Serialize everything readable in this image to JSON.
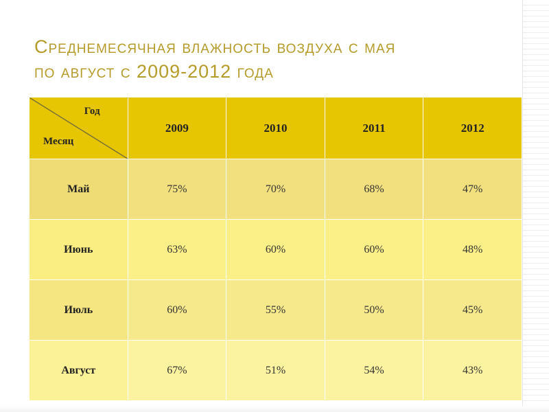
{
  "title": {
    "line1": "Среднемесячная влажность воздуха с мая",
    "line2": "по август с 2009-2012 года"
  },
  "table": {
    "corner_year_label": "Год",
    "corner_month_label": "Месяц",
    "years": [
      "2009",
      "2010",
      "2011",
      "2012"
    ],
    "rows": [
      {
        "month": "Май",
        "values": [
          "75%",
          "70%",
          "68%",
          "47%"
        ]
      },
      {
        "month": "Июнь",
        "values": [
          "63%",
          "60%",
          "60%",
          "48%"
        ]
      },
      {
        "month": "Июль",
        "values": [
          "60%",
          "55%",
          "50%",
          "45%"
        ]
      },
      {
        "month": "Август",
        "values": [
          "67%",
          "51%",
          "54%",
          "43%"
        ]
      }
    ]
  },
  "colors": {
    "title": "#b59b2a",
    "header_bg": "#e5c600",
    "row_bg": [
      "#f2e07f",
      "#fbf088",
      "#f6e98c",
      "#fbf3a0"
    ]
  }
}
